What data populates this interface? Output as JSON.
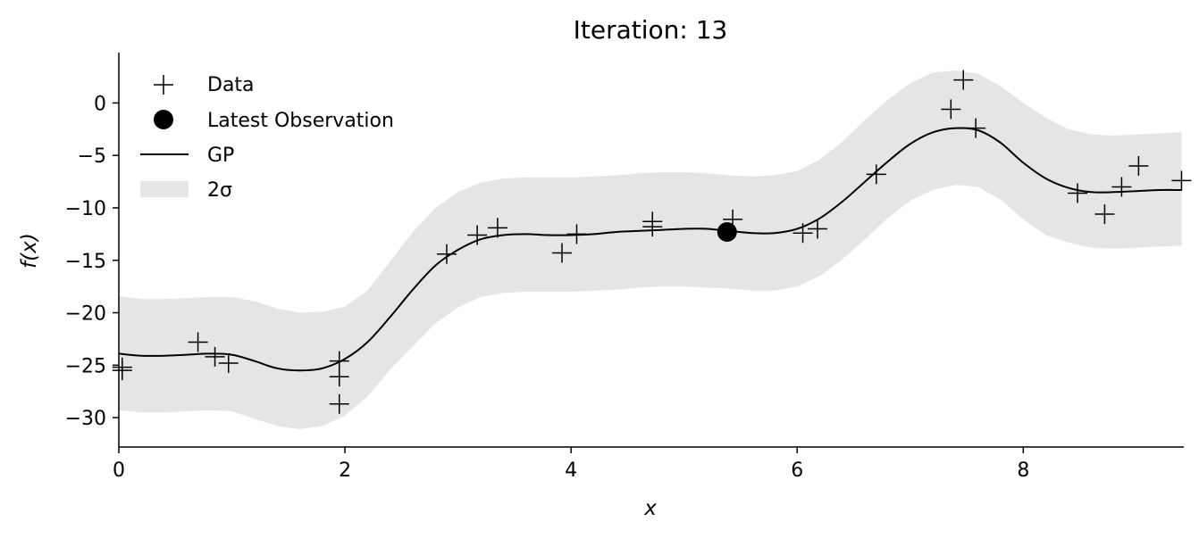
{
  "chart_data": {
    "type": "line",
    "title": "Iteration: 13",
    "xlabel": "x",
    "ylabel": "f(x)",
    "xlim": [
      0,
      9.42
    ],
    "ylim": [
      -32.8,
      4.8
    ],
    "xticks": [
      0,
      2,
      4,
      6,
      8
    ],
    "yticks": [
      0,
      -5,
      -10,
      -15,
      -20,
      -25,
      -30
    ],
    "grid": false,
    "legend_position": "top-left",
    "legend": [
      "Data",
      "Latest Observation",
      "GP",
      "2σ"
    ],
    "series": [
      {
        "name": "Data",
        "kind": "scatter-plus",
        "points": [
          [
            0.03,
            -25.2
          ],
          [
            0.03,
            -25.5
          ],
          [
            0.7,
            -22.8
          ],
          [
            0.85,
            -24.2
          ],
          [
            0.97,
            -24.8
          ],
          [
            1.95,
            -24.6
          ],
          [
            1.95,
            -26.1
          ],
          [
            1.95,
            -28.7
          ],
          [
            2.9,
            -14.4
          ],
          [
            3.17,
            -12.6
          ],
          [
            3.35,
            -11.9
          ],
          [
            3.92,
            -14.3
          ],
          [
            4.05,
            -12.5
          ],
          [
            4.72,
            -11.3
          ],
          [
            4.72,
            -11.8
          ],
          [
            5.43,
            -11.1
          ],
          [
            6.05,
            -12.4
          ],
          [
            6.18,
            -12.0
          ],
          [
            6.7,
            -6.8
          ],
          [
            7.36,
            -0.6
          ],
          [
            7.47,
            2.2
          ],
          [
            7.58,
            -2.4
          ],
          [
            8.48,
            -8.6
          ],
          [
            8.72,
            -10.6
          ],
          [
            8.87,
            -8.0
          ],
          [
            9.02,
            -6.0
          ],
          [
            9.4,
            -7.4
          ]
        ]
      },
      {
        "name": "Latest Observation",
        "kind": "marker",
        "points": [
          [
            5.38,
            -12.3
          ]
        ]
      },
      {
        "name": "GP",
        "kind": "line",
        "x": [
          0,
          0.2,
          0.4,
          0.6,
          0.8,
          1.0,
          1.2,
          1.4,
          1.6,
          1.8,
          2.0,
          2.2,
          2.4,
          2.6,
          2.8,
          3.0,
          3.2,
          3.4,
          3.6,
          3.8,
          4.0,
          4.2,
          4.4,
          4.6,
          4.8,
          5.0,
          5.2,
          5.4,
          5.6,
          5.8,
          6.0,
          6.2,
          6.4,
          6.6,
          6.8,
          7.0,
          7.2,
          7.4,
          7.6,
          7.8,
          8.0,
          8.2,
          8.4,
          8.6,
          8.8,
          9.0,
          9.2,
          9.4
        ],
        "values": [
          -23.9,
          -24.1,
          -24.1,
          -24.0,
          -23.9,
          -24.0,
          -24.6,
          -25.3,
          -25.5,
          -25.3,
          -24.4,
          -22.8,
          -20.4,
          -17.8,
          -15.5,
          -14.0,
          -13.0,
          -12.6,
          -12.5,
          -12.6,
          -12.6,
          -12.5,
          -12.3,
          -12.2,
          -12.1,
          -12.0,
          -12.0,
          -12.2,
          -12.4,
          -12.4,
          -12.0,
          -11.0,
          -9.4,
          -7.5,
          -5.6,
          -3.9,
          -2.8,
          -2.4,
          -2.6,
          -3.8,
          -5.7,
          -7.2,
          -8.1,
          -8.5,
          -8.5,
          -8.4,
          -8.3,
          -8.3
        ]
      },
      {
        "name": "2σ",
        "kind": "band",
        "x": [
          0,
          0.2,
          0.4,
          0.6,
          0.8,
          1.0,
          1.2,
          1.4,
          1.6,
          1.8,
          2.0,
          2.2,
          2.4,
          2.6,
          2.8,
          3.0,
          3.2,
          3.4,
          3.6,
          3.8,
          4.0,
          4.2,
          4.4,
          4.6,
          4.8,
          5.0,
          5.2,
          5.4,
          5.6,
          5.8,
          6.0,
          6.2,
          6.4,
          6.6,
          6.8,
          7.0,
          7.2,
          7.4,
          7.6,
          7.8,
          8.0,
          8.2,
          8.4,
          8.6,
          8.8,
          9.0,
          9.2,
          9.4
        ],
        "upper": [
          -18.4,
          -18.7,
          -18.7,
          -18.6,
          -18.5,
          -18.5,
          -18.9,
          -19.6,
          -20.0,
          -19.9,
          -19.4,
          -17.9,
          -15.1,
          -12.3,
          -10.0,
          -8.5,
          -7.6,
          -7.2,
          -7.1,
          -7.1,
          -7.1,
          -7.0,
          -6.9,
          -6.7,
          -6.6,
          -6.6,
          -6.7,
          -6.9,
          -7.0,
          -6.9,
          -6.5,
          -5.4,
          -3.7,
          -1.6,
          0.3,
          1.9,
          2.9,
          3.1,
          2.8,
          1.6,
          0.0,
          -1.4,
          -2.5,
          -3.0,
          -3.1,
          -3.0,
          -2.9,
          -2.8
        ],
        "lower": [
          -29.3,
          -29.5,
          -29.5,
          -29.4,
          -29.3,
          -29.4,
          -30.1,
          -30.8,
          -31.1,
          -30.8,
          -29.8,
          -28.0,
          -25.4,
          -23.2,
          -21.0,
          -19.5,
          -18.5,
          -18.1,
          -18.0,
          -18.0,
          -18.0,
          -17.9,
          -17.8,
          -17.6,
          -17.5,
          -17.5,
          -17.6,
          -17.7,
          -17.9,
          -17.9,
          -17.5,
          -16.5,
          -14.9,
          -13.0,
          -11.0,
          -9.3,
          -8.3,
          -7.8,
          -8.0,
          -9.2,
          -11.1,
          -12.6,
          -13.3,
          -13.8,
          -13.9,
          -13.8,
          -13.7,
          -13.6
        ]
      }
    ],
    "colors": {
      "band": "#e5e5e5",
      "line": "#000000",
      "marker": "#000000"
    }
  }
}
